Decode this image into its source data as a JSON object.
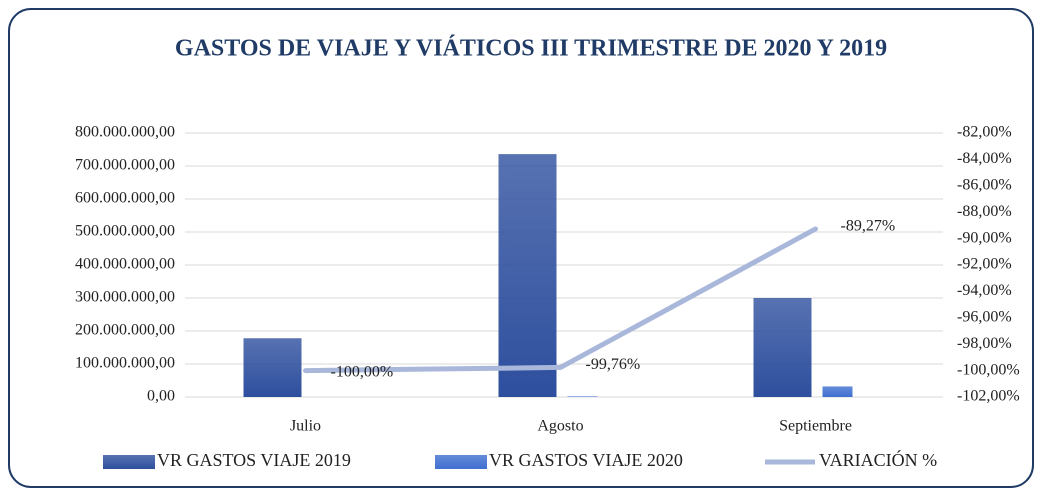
{
  "chart_data": {
    "type": "bar_line",
    "title": "GASTOS DE VIAJE Y VIÁTICOS III TRIMESTRE DE 2020 Y 2019",
    "categories": [
      "Julio",
      "Agosto",
      "Septiembre"
    ],
    "series": [
      {
        "name": "VR GASTOS VIAJE 2019",
        "color": "#2e4f9e",
        "type": "bar",
        "values": [
          178000000,
          736000000,
          300000000
        ]
      },
      {
        "name": "VR GASTOS VIAJE 2020",
        "color": "#3f6fd0",
        "type": "bar",
        "values": [
          0,
          1770000,
          32000000
        ]
      },
      {
        "name": "VARIACIÓN %",
        "color": "#a9b7db",
        "type": "line",
        "axis": "y2",
        "values": [
          -100,
          -99.76,
          -89.27
        ],
        "value_labels": [
          "-100,00%",
          "-99,76%",
          "-89,27%"
        ]
      }
    ],
    "ylim": [
      0,
      800000000
    ],
    "yticks": [
      {
        "value": 0,
        "label": "0,00"
      },
      {
        "value": 100000000,
        "label": "100.000.000,00"
      },
      {
        "value": 200000000,
        "label": "200.000.000,00"
      },
      {
        "value": 300000000,
        "label": "300.000.000,00"
      },
      {
        "value": 400000000,
        "label": "400.000.000,00"
      },
      {
        "value": 500000000,
        "label": "500.000.000,00"
      },
      {
        "value": 600000000,
        "label": "600.000.000,00"
      },
      {
        "value": 700000000,
        "label": "700.000.000,00"
      },
      {
        "value": 800000000,
        "label": "800.000.000,00"
      }
    ],
    "y2lim": [
      -102,
      -82
    ],
    "y2ticks": [
      {
        "value": -82,
        "label": "-82,00%"
      },
      {
        "value": -84,
        "label": "-84,00%"
      },
      {
        "value": -86,
        "label": "-86,00%"
      },
      {
        "value": -88,
        "label": "-88,00%"
      },
      {
        "value": -90,
        "label": "-90,00%"
      },
      {
        "value": -92,
        "label": "-92,00%"
      },
      {
        "value": -94,
        "label": "-94,00%"
      },
      {
        "value": -96,
        "label": "-96,00%"
      },
      {
        "value": -98,
        "label": "-98,00%"
      },
      {
        "value": -100,
        "label": "-100,00%"
      },
      {
        "value": -102,
        "label": "-102,00%"
      }
    ],
    "grid": true,
    "legend": "bottom"
  }
}
